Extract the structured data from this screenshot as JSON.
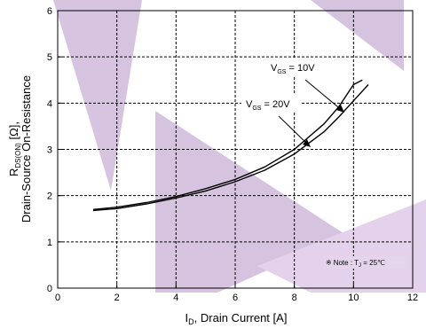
{
  "chart_data": {
    "type": "line",
    "xlabel_main": "I",
    "xlabel_sub": "D",
    "xlabel_rest": ", Drain Current [A]",
    "ylabel_line1_main": "R",
    "ylabel_line1_sub": "DS(ON)",
    "ylabel_line1_rest": " [Ω],",
    "ylabel_line2": "Drain-Source On-Resistance",
    "xlim": [
      0,
      12
    ],
    "ylim": [
      0,
      6
    ],
    "xticks": [
      "0",
      "2",
      "4",
      "6",
      "8",
      "10",
      "12"
    ],
    "yticks": [
      "0",
      "1",
      "2",
      "3",
      "4",
      "5",
      "6"
    ],
    "grid": true,
    "series": [
      {
        "label_main": "V",
        "label_sub": "GS",
        "label_rest": " = 10V",
        "x": [
          1.2,
          2,
          3,
          4,
          5,
          6,
          7,
          8,
          9,
          9.5,
          10,
          10.3
        ],
        "y": [
          1.7,
          1.75,
          1.85,
          1.98,
          2.15,
          2.35,
          2.62,
          3.0,
          3.55,
          3.92,
          4.4,
          4.5
        ]
      },
      {
        "label_main": "V",
        "label_sub": "GS",
        "label_rest": " = 20V",
        "x": [
          1.2,
          2,
          3,
          4,
          5,
          6,
          7,
          8,
          9,
          9.5,
          10,
          10.5
        ],
        "y": [
          1.68,
          1.72,
          1.82,
          1.95,
          2.1,
          2.3,
          2.55,
          2.9,
          3.38,
          3.7,
          4.05,
          4.4
        ]
      }
    ],
    "note_symbol": "※",
    "note_text": "Note : T",
    "note_sub": "J",
    "note_rest": " = 25℃",
    "colors": {
      "line": "#000000",
      "grid": "#000000",
      "watermark": "#c9b0d6"
    }
  }
}
